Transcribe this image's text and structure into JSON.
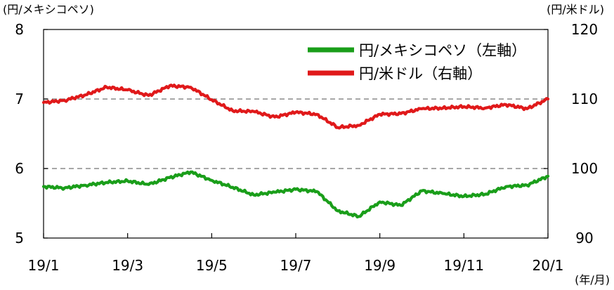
{
  "chart_data": {
    "type": "line",
    "left_unit": "(円/メキシコペソ)",
    "right_unit": "(円/米ドル)",
    "x_unit": "(年/月)",
    "x_ticks": [
      "19/1",
      "19/3",
      "19/5",
      "19/7",
      "19/9",
      "19/11",
      "20/1"
    ],
    "x_tick_positions": [
      0,
      2,
      4,
      6,
      8,
      10,
      12
    ],
    "xlim": [
      0,
      12
    ],
    "left_axis": {
      "ylim": [
        5,
        8
      ],
      "ticks": [
        "5",
        "6",
        "7",
        "8"
      ]
    },
    "right_axis": {
      "ylim": [
        90,
        120
      ],
      "ticks": [
        "90",
        "100",
        "110",
        "120"
      ]
    },
    "grid": {
      "dashed_at_left": [
        6,
        7
      ]
    },
    "legend": {
      "position": "top-right",
      "entries": [
        "円/メキシコペソ（左軸）",
        "円/米ドル（右軸）"
      ]
    },
    "series": [
      {
        "name": "円/メキシコペソ（左軸）",
        "axis": "left",
        "color": "#1a9e1a",
        "x": [
          0,
          0.5,
          1,
          1.5,
          2,
          2.5,
          3,
          3.5,
          4,
          4.5,
          5,
          5.5,
          6,
          6.5,
          7,
          7.5,
          8,
          8.5,
          9,
          9.5,
          10,
          10.5,
          11,
          11.5,
          12
        ],
        "values": [
          5.74,
          5.72,
          5.76,
          5.8,
          5.82,
          5.77,
          5.87,
          5.95,
          5.83,
          5.73,
          5.62,
          5.66,
          5.7,
          5.67,
          5.39,
          5.31,
          5.52,
          5.47,
          5.68,
          5.64,
          5.6,
          5.63,
          5.74,
          5.76,
          5.89
        ]
      },
      {
        "name": "円/米ドル（右軸）",
        "axis": "right",
        "color": "#e0191a",
        "x": [
          0,
          0.5,
          1,
          1.5,
          2,
          2.5,
          3,
          3.5,
          4,
          4.5,
          5,
          5.5,
          6,
          6.5,
          7,
          7.5,
          8,
          8.5,
          9,
          9.5,
          10,
          10.5,
          11,
          11.5,
          12
        ],
        "values": [
          109.5,
          109.8,
          110.6,
          111.7,
          111.3,
          110.5,
          111.9,
          111.7,
          109.9,
          108.3,
          108.2,
          107.4,
          108.1,
          107.8,
          105.9,
          106.2,
          107.8,
          107.9,
          108.6,
          108.7,
          108.9,
          108.7,
          109.2,
          108.6,
          110.0
        ]
      }
    ]
  }
}
